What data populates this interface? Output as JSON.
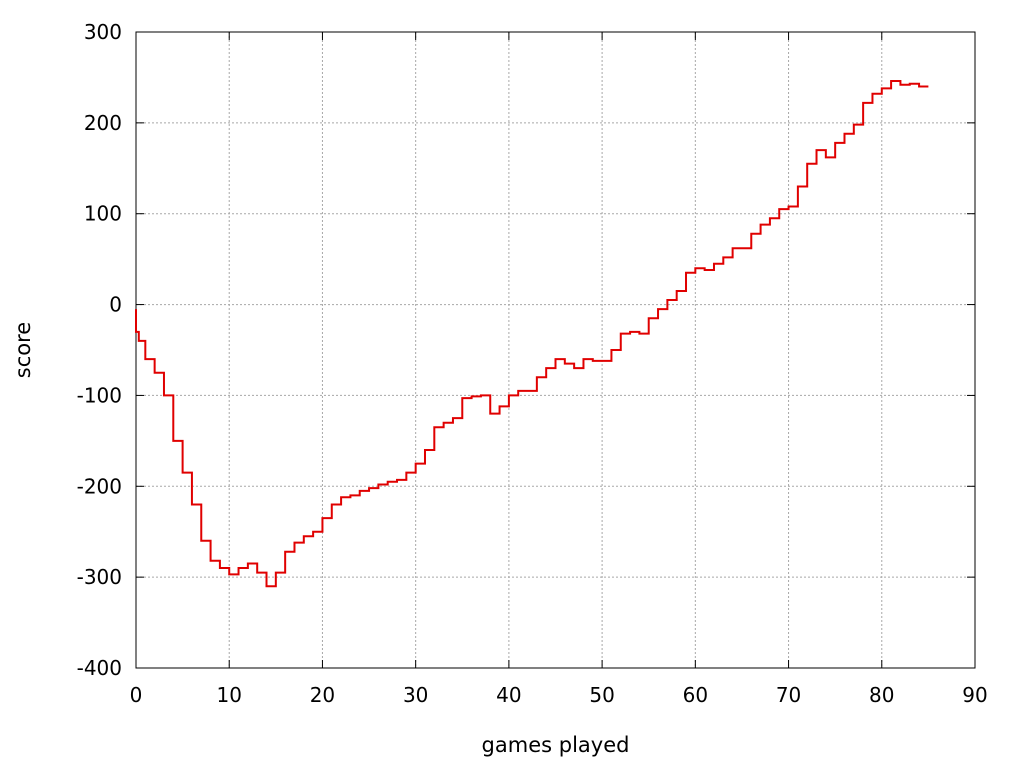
{
  "chart_data": {
    "type": "line",
    "title": "",
    "xlabel": "games played",
    "ylabel": "score",
    "xlim": [
      0,
      90
    ],
    "ylim": [
      -400,
      300
    ],
    "x_ticks": [
      0,
      10,
      20,
      30,
      40,
      50,
      60,
      70,
      80,
      90
    ],
    "y_ticks": [
      -400,
      -300,
      -200,
      -100,
      0,
      100,
      200,
      300
    ],
    "grid": true,
    "line_style": "step",
    "series": [
      {
        "color": "#e00000",
        "x": [
          0,
          0.3,
          1,
          2,
          3,
          4,
          5,
          6,
          7,
          8,
          9,
          10,
          11,
          12,
          13,
          14,
          15,
          16,
          17,
          18,
          19,
          20,
          21,
          22,
          23,
          24,
          25,
          26,
          27,
          28,
          29,
          30,
          31,
          32,
          33,
          34,
          35,
          36,
          37,
          38,
          39,
          40,
          41,
          42,
          43,
          44,
          45,
          46,
          47,
          48,
          49,
          50,
          51,
          52,
          53,
          54,
          55,
          56,
          57,
          58,
          59,
          60,
          61,
          62,
          63,
          64,
          65,
          66,
          67,
          68,
          69,
          70,
          71,
          72,
          73,
          74,
          75,
          76,
          77,
          78,
          79,
          80,
          81,
          82,
          83,
          84,
          85
        ],
        "y": [
          -5,
          -30,
          -40,
          -60,
          -75,
          -100,
          -150,
          -185,
          -220,
          -260,
          -282,
          -290,
          -297,
          -290,
          -285,
          -295,
          -310,
          -295,
          -272,
          -262,
          -255,
          -250,
          -235,
          -220,
          -212,
          -210,
          -205,
          -202,
          -198,
          -195,
          -193,
          -185,
          -175,
          -160,
          -135,
          -130,
          -125,
          -103,
          -101,
          -100,
          -120,
          -112,
          -100,
          -95,
          -95,
          -80,
          -70,
          -60,
          -65,
          -70,
          -60,
          -62,
          -62,
          -50,
          -32,
          -30,
          -32,
          -15,
          -5,
          5,
          15,
          35,
          40,
          38,
          45,
          52,
          62,
          62,
          78,
          88,
          95,
          105,
          108,
          130,
          155,
          170,
          162,
          178,
          188,
          198,
          222,
          232,
          238,
          246,
          242,
          243,
          240
        ]
      }
    ]
  }
}
